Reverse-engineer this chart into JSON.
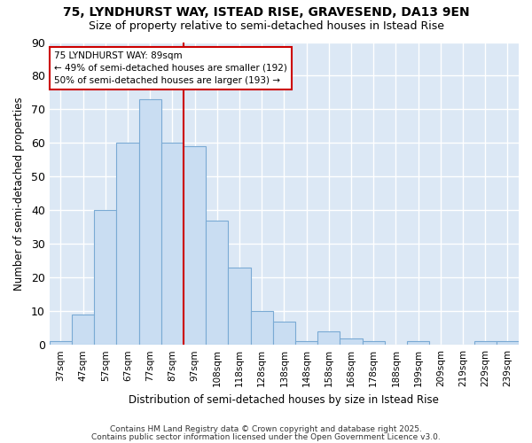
{
  "title1": "75, LYNDHURST WAY, ISTEAD RISE, GRAVESEND, DA13 9EN",
  "title2": "Size of property relative to semi-detached houses in Istead Rise",
  "xlabel": "Distribution of semi-detached houses by size in Istead Rise",
  "ylabel": "Number of semi-detached properties",
  "categories": [
    "37sqm",
    "47sqm",
    "57sqm",
    "67sqm",
    "77sqm",
    "87sqm",
    "97sqm",
    "108sqm",
    "118sqm",
    "128sqm",
    "138sqm",
    "148sqm",
    "158sqm",
    "168sqm",
    "178sqm",
    "188sqm",
    "199sqm",
    "209sqm",
    "219sqm",
    "229sqm",
    "239sqm"
  ],
  "values": [
    1,
    9,
    40,
    60,
    73,
    60,
    59,
    37,
    23,
    10,
    7,
    1,
    4,
    2,
    1,
    0,
    1,
    0,
    0,
    1,
    1
  ],
  "bar_color": "#c9ddf2",
  "bar_edge_color": "#7aaad4",
  "bar_linewidth": 0.8,
  "red_line_index": 5,
  "red_line_color": "#cc0000",
  "annotation_line1": "75 LYNDHURST WAY: 89sqm",
  "annotation_line2": "← 49% of semi-detached houses are smaller (192)",
  "annotation_line3": "50% of semi-detached houses are larger (193) →",
  "annotation_box_color": "#ffffff",
  "annotation_box_edge": "#cc0000",
  "ylim": [
    0,
    90
  ],
  "yticks": [
    0,
    10,
    20,
    30,
    40,
    50,
    60,
    70,
    80,
    90
  ],
  "fig_bg_color": "#ffffff",
  "plot_bg_color": "#dce8f5",
  "grid_color": "#ffffff",
  "footer1": "Contains HM Land Registry data © Crown copyright and database right 2025.",
  "footer2": "Contains public sector information licensed under the Open Government Licence v3.0."
}
